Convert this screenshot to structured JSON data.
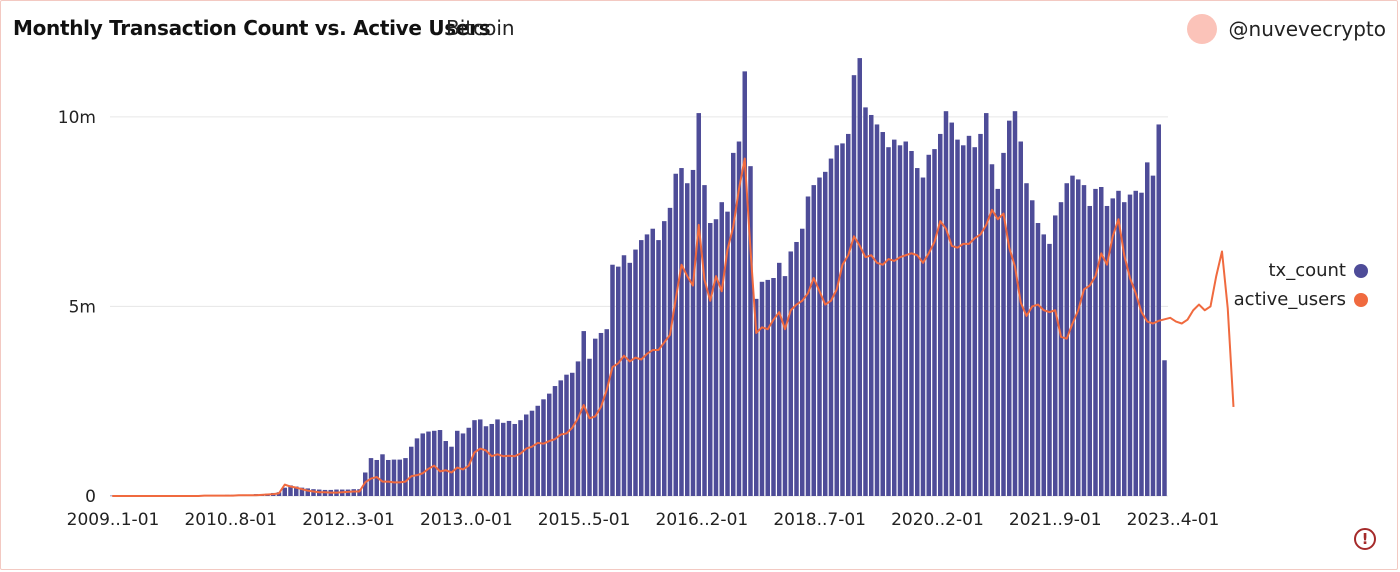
{
  "header": {
    "title": "Monthly Transaction Count vs. Active Users",
    "subtitle": "Bitcoin",
    "author": "@nuvevecrypto"
  },
  "colors": {
    "tx_count": "#4e4c98",
    "active_users": "#f06a3f",
    "grid": "#e6e6e6",
    "avatar": "#fbc3b9",
    "alert": "#a52a2a"
  },
  "icons": {
    "alert": "alert-circle-icon"
  },
  "chart_data": {
    "type": "bar",
    "title": "Monthly Transaction Count vs. Active Users",
    "subtitle": "Bitcoin",
    "x_tick_labels": [
      "2009..1-01",
      "2010..8-01",
      "2012..3-01",
      "2013..0-01",
      "2015..5-01",
      "2016..2-01",
      "2018..7-01",
      "2020..2-01",
      "2021..9-01",
      "2023..4-01"
    ],
    "y_ticks": [
      {
        "value": 0,
        "label": "0"
      },
      {
        "value": 5000000,
        "label": "5m"
      },
      {
        "value": 10000000,
        "label": "10m"
      }
    ],
    "ylim": [
      0,
      11500000
    ],
    "grid": true,
    "legend": "right",
    "series": [
      {
        "name": "tx_count",
        "type": "bar",
        "values_millions": [
          0.01,
          0.01,
          0.01,
          0.01,
          0.01,
          0.01,
          0.01,
          0.01,
          0.01,
          0.01,
          0.01,
          0.01,
          0.01,
          0.01,
          0.01,
          0.02,
          0.02,
          0.02,
          0.02,
          0.02,
          0.03,
          0.03,
          0.03,
          0.04,
          0.04,
          0.05,
          0.05,
          0.06,
          0.08,
          0.1,
          0.22,
          0.28,
          0.25,
          0.22,
          0.2,
          0.18,
          0.17,
          0.16,
          0.16,
          0.17,
          0.17,
          0.17,
          0.18,
          0.18,
          0.62,
          1,
          0.95,
          1.1,
          0.95,
          0.96,
          0.96,
          1,
          1.3,
          1.52,
          1.65,
          1.7,
          1.72,
          1.74,
          1.45,
          1.3,
          1.72,
          1.65,
          1.8,
          2,
          2.02,
          1.84,
          1.9,
          2.02,
          1.93,
          1.98,
          1.9,
          2,
          2.15,
          2.25,
          2.38,
          2.55,
          2.7,
          2.9,
          3.05,
          3.2,
          3.25,
          3.55,
          4.35,
          3.62,
          4.15,
          4.3,
          4.4,
          6.1,
          6.05,
          6.35,
          6.15,
          6.5,
          6.75,
          6.9,
          7.05,
          6.75,
          7.25,
          7.6,
          8.5,
          8.65,
          8.25,
          8.6,
          10.1,
          8.2,
          7.2,
          7.3,
          7.75,
          7.5,
          9.05,
          9.35,
          11.2,
          8.7,
          5.2,
          5.65,
          5.7,
          5.75,
          6.15,
          5.8,
          6.45,
          6.7,
          7.05,
          7.9,
          8.2,
          8.4,
          8.55,
          8.9,
          9.25,
          9.3,
          9.55,
          11.1,
          11.55,
          10.25,
          10.05,
          9.8,
          9.6,
          9.2,
          9.4,
          9.25,
          9.35,
          9.1,
          8.65,
          8.4,
          9,
          9.15,
          9.55,
          10.15,
          9.85,
          9.4,
          9.25,
          9.5,
          9.2,
          9.55,
          10.1,
          8.75,
          8.1,
          9.05,
          9.9,
          10.15,
          9.35,
          8.25,
          7.8,
          7.2,
          6.9,
          6.65,
          7.4,
          7.75,
          8.25,
          8.45,
          8.35,
          8.2,
          7.65,
          8.1,
          8.15,
          7.65,
          7.85,
          8.05,
          7.75,
          7.95,
          8.05,
          8,
          8.8,
          8.45,
          9.8,
          3.58
        ]
      },
      {
        "name": "active_users",
        "type": "line",
        "values_millions": [
          0,
          0,
          0,
          0,
          0,
          0,
          0,
          0,
          0,
          0,
          0,
          0,
          0,
          0,
          0,
          0,
          0.01,
          0.01,
          0.01,
          0.01,
          0.01,
          0.01,
          0.02,
          0.02,
          0.02,
          0.02,
          0.03,
          0.04,
          0.05,
          0.07,
          0.3,
          0.25,
          0.22,
          0.18,
          0.14,
          0.12,
          0.1,
          0.1,
          0.09,
          0.09,
          0.1,
          0.11,
          0.12,
          0.12,
          0.36,
          0.46,
          0.5,
          0.38,
          0.38,
          0.36,
          0.36,
          0.38,
          0.52,
          0.55,
          0.6,
          0.72,
          0.8,
          0.65,
          0.68,
          0.62,
          0.75,
          0.7,
          0.8,
          1.15,
          1.25,
          1.2,
          1.05,
          1.1,
          1.05,
          1.06,
          1.05,
          1.12,
          1.25,
          1.3,
          1.4,
          1.38,
          1.45,
          1.5,
          1.62,
          1.65,
          1.8,
          2.05,
          2.4,
          2.05,
          2.1,
          2.35,
          2.8,
          3.4,
          3.5,
          3.7,
          3.55,
          3.65,
          3.6,
          3.75,
          3.85,
          3.85,
          4.05,
          4.25,
          5.2,
          6.1,
          5.8,
          5.55,
          7.15,
          5.7,
          5.15,
          5.8,
          5.4,
          6.5,
          7.1,
          8.1,
          8.9,
          6.5,
          4.3,
          4.45,
          4.4,
          4.65,
          4.85,
          4.4,
          4.9,
          5.05,
          5.15,
          5.35,
          5.75,
          5.4,
          5.05,
          5.15,
          5.45,
          6.1,
          6.35,
          6.85,
          6.6,
          6.3,
          6.35,
          6.15,
          6.1,
          6.25,
          6.2,
          6.3,
          6.35,
          6.4,
          6.35,
          6.15,
          6.4,
          6.7,
          7.25,
          7.05,
          6.6,
          6.55,
          6.65,
          6.65,
          6.8,
          6.9,
          7.15,
          7.55,
          7.3,
          7.45,
          6.55,
          6.05,
          5.1,
          4.75,
          5.0,
          5.05,
          4.9,
          4.85,
          4.9,
          4.2,
          4.15,
          4.55,
          4.9,
          5.45,
          5.55,
          5.8,
          6.4,
          6.1,
          6.85,
          7.3,
          6.35,
          5.75,
          5.35,
          4.85,
          4.6,
          4.55,
          4.62,
          4.66,
          4.7,
          4.6,
          4.55,
          4.65,
          4.9,
          5.05,
          4.9,
          5.0,
          5.8,
          6.45,
          4.95,
          2.35
        ]
      }
    ]
  }
}
